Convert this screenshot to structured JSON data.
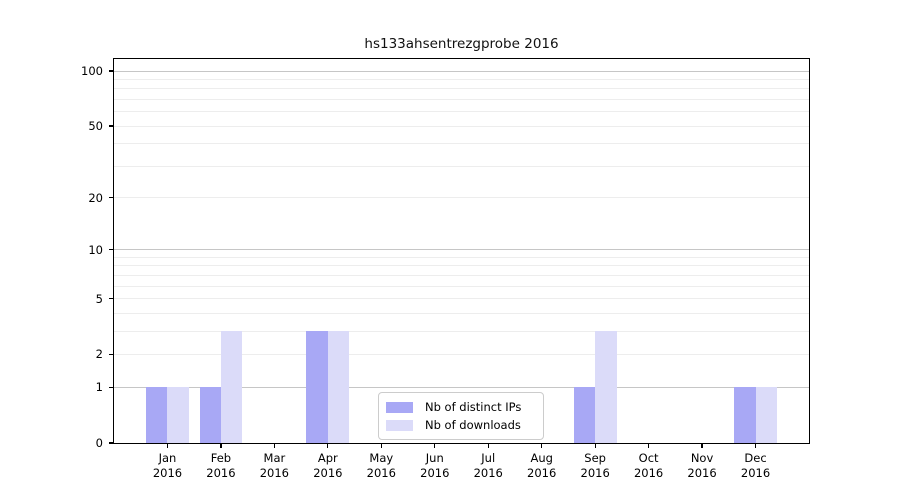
{
  "title": "hs133ahsentrezgprobe 2016",
  "chart_data": {
    "type": "bar",
    "title": "hs133ahsentrezgprobe 2016",
    "categories": [
      "Jan",
      "Feb",
      "Mar",
      "Apr",
      "May",
      "Jun",
      "Jul",
      "Aug",
      "Sep",
      "Oct",
      "Nov",
      "Dec"
    ],
    "category_year": "2016",
    "series": [
      {
        "name": "Nb of distinct IPs",
        "color": "#a8a8f5",
        "values": [
          1,
          1,
          0,
          3,
          0,
          0,
          0,
          0,
          1,
          0,
          0,
          1
        ]
      },
      {
        "name": "Nb of downloads",
        "color": "#dbdbf9",
        "values": [
          1,
          3,
          0,
          3,
          0,
          0,
          0,
          0,
          3,
          0,
          0,
          1
        ]
      }
    ],
    "y_ticks": [
      0,
      1,
      2,
      5,
      10,
      20,
      50,
      100
    ],
    "y_scale": "log1p",
    "y_axis_max": 100,
    "grid": {
      "major_values": [
        1,
        10,
        100
      ],
      "minor_values": [
        2,
        3,
        4,
        5,
        6,
        7,
        8,
        9,
        20,
        30,
        40,
        50,
        60,
        70,
        80,
        90
      ],
      "major_color": "#c6c6c6",
      "minor_color": "#ededed"
    },
    "legend": {
      "position": "lower-center-inside"
    },
    "axes_color": "#000000"
  }
}
